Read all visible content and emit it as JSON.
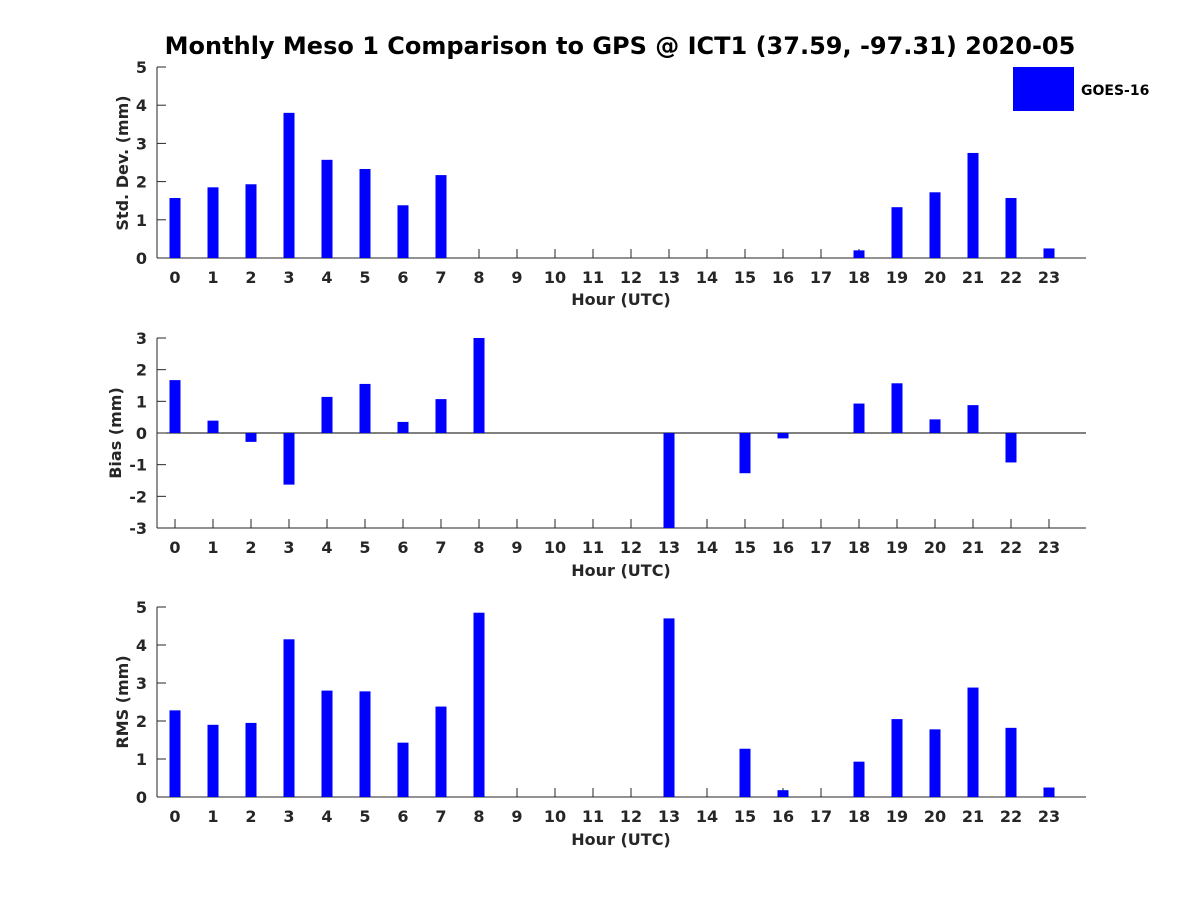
{
  "title": "Monthly Meso 1 Comparison to GPS @ ICT1 (37.59, -97.31) 2020-05",
  "legend": {
    "label": "GOES-16",
    "color": "#0000FF",
    "position": "top-right"
  },
  "chart_data": [
    {
      "type": "bar",
      "ylabel": "Std. Dev. (mm)",
      "xlabel": "Hour (UTC)",
      "ylim": [
        0,
        5
      ],
      "yticks": [
        0,
        1,
        2,
        3,
        4,
        5
      ],
      "categories": [
        "0",
        "1",
        "2",
        "3",
        "4",
        "5",
        "6",
        "7",
        "8",
        "9",
        "10",
        "11",
        "12",
        "13",
        "14",
        "15",
        "16",
        "17",
        "18",
        "19",
        "20",
        "21",
        "22",
        "23"
      ],
      "series": [
        {
          "name": "GOES-16",
          "values": [
            1.57,
            1.85,
            1.93,
            3.8,
            2.57,
            2.33,
            1.38,
            2.17,
            0,
            0,
            0,
            0,
            0,
            0,
            0,
            0,
            0,
            0,
            0.2,
            1.33,
            1.72,
            2.75,
            1.57,
            0.25
          ]
        }
      ]
    },
    {
      "type": "bar",
      "ylabel": "Bias (mm)",
      "xlabel": "Hour (UTC)",
      "ylim": [
        -3,
        3
      ],
      "yticks": [
        -3,
        -2,
        -1,
        0,
        1,
        2,
        3
      ],
      "categories": [
        "0",
        "1",
        "2",
        "3",
        "4",
        "5",
        "6",
        "7",
        "8",
        "9",
        "10",
        "11",
        "12",
        "13",
        "14",
        "15",
        "16",
        "17",
        "18",
        "19",
        "20",
        "21",
        "22",
        "23"
      ],
      "series": [
        {
          "name": "GOES-16",
          "values": [
            1.67,
            0.39,
            -0.28,
            -1.63,
            1.14,
            1.55,
            0.35,
            1.07,
            3.0,
            0,
            0,
            0,
            0,
            -3.0,
            0,
            -1.27,
            -0.17,
            0,
            0.93,
            1.57,
            0.43,
            0.88,
            -0.93,
            0
          ]
        }
      ]
    },
    {
      "type": "bar",
      "ylabel": "RMS (mm)",
      "xlabel": "Hour (UTC)",
      "ylim": [
        0,
        5
      ],
      "yticks": [
        0,
        1,
        2,
        3,
        4,
        5
      ],
      "categories": [
        "0",
        "1",
        "2",
        "3",
        "4",
        "5",
        "6",
        "7",
        "8",
        "9",
        "10",
        "11",
        "12",
        "13",
        "14",
        "15",
        "16",
        "17",
        "18",
        "19",
        "20",
        "21",
        "22",
        "23"
      ],
      "series": [
        {
          "name": "GOES-16",
          "values": [
            2.28,
            1.9,
            1.95,
            4.15,
            2.8,
            2.78,
            1.43,
            2.38,
            4.85,
            0,
            0,
            0,
            0,
            4.7,
            0,
            1.27,
            0.18,
            0,
            0.93,
            2.05,
            1.78,
            2.88,
            1.82,
            0.25
          ]
        }
      ]
    }
  ]
}
